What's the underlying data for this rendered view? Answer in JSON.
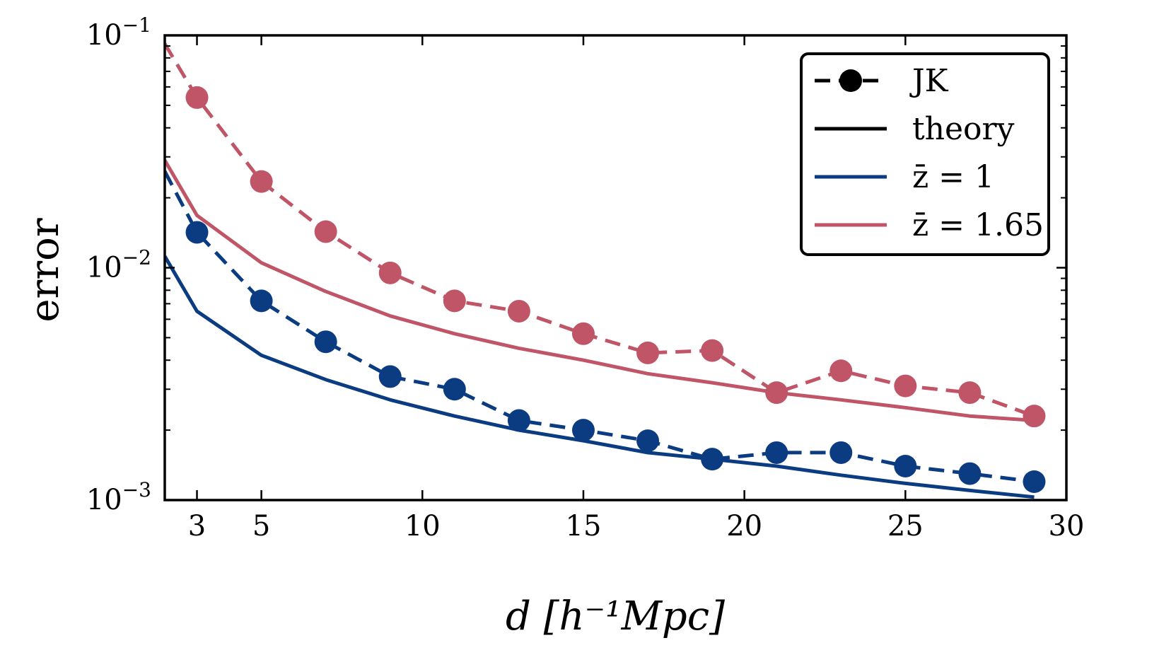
{
  "chart_data": {
    "type": "line",
    "xlabel": "d [h⁻¹Mpc]",
    "ylabel": "error",
    "xscale": "linear",
    "yscale": "log",
    "xlim": [
      2,
      30
    ],
    "ylim": [
      0.001,
      0.1
    ],
    "xticks": [
      3,
      5,
      10,
      15,
      20,
      25,
      30
    ],
    "xtick_labels": [
      "3",
      "5",
      "10",
      "15",
      "20",
      "25",
      "30"
    ],
    "yticks": [
      0.001,
      0.01,
      0.1
    ],
    "ytick_labels": [
      {
        "base": "10",
        "exp": "−3"
      },
      {
        "base": "10",
        "exp": "−2"
      },
      {
        "base": "10",
        "exp": "−1"
      }
    ],
    "colors": {
      "z1": "#0b3c82",
      "z165": "#bf5567"
    },
    "legend": {
      "position": "top-right",
      "entries": [
        {
          "label": "JK",
          "style": "dashed-marker",
          "color": "#000000"
        },
        {
          "label": "theory",
          "style": "solid",
          "color": "#000000"
        },
        {
          "label": "z̄ = 1",
          "style": "solid",
          "color": "#0b3c82"
        },
        {
          "label": "z̄ = 1.65",
          "style": "solid",
          "color": "#bf5567"
        }
      ]
    },
    "series": [
      {
        "name": "JK z̄ = 1.65",
        "kind": "jk",
        "color": "#bf5567",
        "x": [
          2,
          3,
          5,
          7,
          9,
          11,
          13,
          15,
          17,
          19,
          21,
          23,
          25,
          27,
          29
        ],
        "y": [
          0.092,
          0.054,
          0.0235,
          0.0143,
          0.0095,
          0.0072,
          0.0065,
          0.0052,
          0.0043,
          0.0044,
          0.0029,
          0.0036,
          0.0031,
          0.0029,
          0.0023
        ],
        "markers_from": 1
      },
      {
        "name": "theory z̄ = 1.65",
        "kind": "theory",
        "color": "#bf5567",
        "x": [
          2,
          3,
          5,
          7,
          9,
          11,
          13,
          15,
          17,
          19,
          21,
          23,
          25,
          27,
          29
        ],
        "y": [
          0.029,
          0.0168,
          0.0105,
          0.0079,
          0.0062,
          0.0052,
          0.0045,
          0.004,
          0.0035,
          0.0032,
          0.0029,
          0.0027,
          0.0025,
          0.0023,
          0.0022
        ]
      },
      {
        "name": "JK z̄ = 1",
        "kind": "jk",
        "color": "#0b3c82",
        "x": [
          2,
          3,
          5,
          7,
          9,
          11,
          13,
          15,
          17,
          19,
          21,
          23,
          25,
          27,
          29
        ],
        "y": [
          0.026,
          0.0142,
          0.0072,
          0.0048,
          0.0034,
          0.003,
          0.0022,
          0.002,
          0.0018,
          0.0015,
          0.0016,
          0.0016,
          0.0014,
          0.0013,
          0.0012
        ],
        "markers_from": 1
      },
      {
        "name": "theory z̄ = 1",
        "kind": "theory",
        "color": "#0b3c82",
        "x": [
          2,
          3,
          5,
          7,
          9,
          11,
          13,
          15,
          17,
          19,
          21,
          23,
          25,
          27,
          29
        ],
        "y": [
          0.0112,
          0.0065,
          0.0042,
          0.0033,
          0.0027,
          0.0023,
          0.002,
          0.0018,
          0.0016,
          0.0015,
          0.0014,
          0.00128,
          0.00118,
          0.0011,
          0.00103
        ]
      }
    ]
  }
}
